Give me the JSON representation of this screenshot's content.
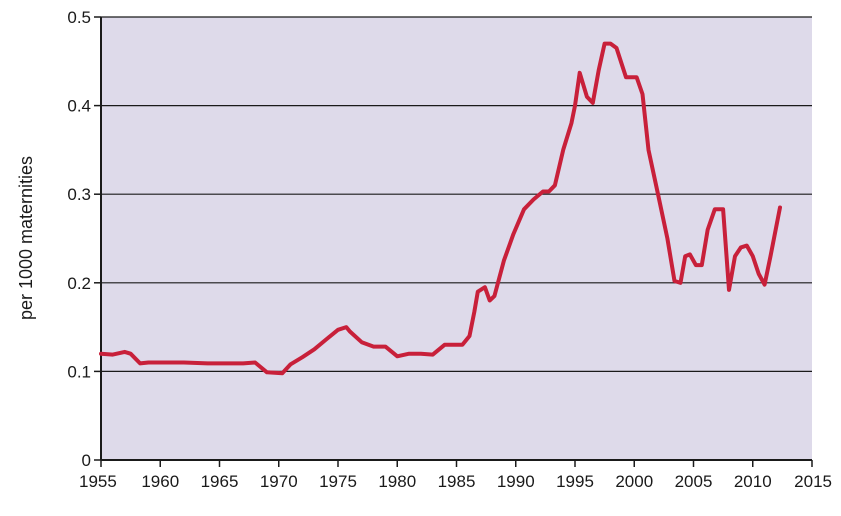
{
  "chart_data": {
    "type": "line",
    "title": "",
    "xlabel": "",
    "ylabel": "per 1000 maternities",
    "xlim": [
      1955,
      2015
    ],
    "ylim": [
      0,
      0.5
    ],
    "x_ticks": [
      1955,
      1960,
      1965,
      1970,
      1975,
      1980,
      1985,
      1990,
      1995,
      2000,
      2005,
      2010,
      2015
    ],
    "y_ticks": [
      {
        "value": 0,
        "label": "0"
      },
      {
        "value": 0.1,
        "label": "0.1"
      },
      {
        "value": 0.2,
        "label": "0.2"
      },
      {
        "value": 0.3,
        "label": "0.3"
      },
      {
        "value": 0.4,
        "label": "0.4"
      },
      {
        "value": 0.5,
        "label": "0.5"
      }
    ],
    "grid": "horizontal",
    "colors": {
      "plot_background": "#dedaea",
      "line": "#c8203a",
      "grid": "#1a1a1a",
      "axis": "#1a1a1a"
    },
    "series": [
      {
        "x": [
          1955,
          1956,
          1957,
          1957.5,
          1958.3,
          1959,
          1960,
          1962,
          1964,
          1966,
          1967,
          1968,
          1969,
          1970.3,
          1971,
          1972,
          1973,
          1974,
          1975,
          1975.7,
          1976,
          1977,
          1978,
          1979,
          1980,
          1981,
          1982,
          1983,
          1984,
          1985,
          1985.5,
          1986.1,
          1986.5,
          1986.8,
          1987.4,
          1987.8,
          1988.2,
          1989,
          1989.8,
          1990.7,
          1991.5,
          1992.3,
          1992.8,
          1993.3,
          1994,
          1994.7,
          1995,
          1995.4,
          1996,
          1996.5,
          1997,
          1997.5,
          1998,
          1998.5,
          1999.3,
          2000.2,
          2000.7,
          2001.2,
          2002,
          2002.8,
          2003.4,
          2003.9,
          2004.3,
          2004.7,
          2005.2,
          2005.7,
          2006.2,
          2006.8,
          2007.5,
          2008,
          2008.5,
          2009,
          2009.5,
          2010,
          2010.5,
          2011,
          2011.5,
          2012.3
        ],
        "values": [
          0.12,
          0.119,
          0.122,
          0.12,
          0.109,
          0.11,
          0.11,
          0.11,
          0.109,
          0.109,
          0.109,
          0.11,
          0.099,
          0.098,
          0.108,
          0.116,
          0.125,
          0.136,
          0.147,
          0.15,
          0.145,
          0.133,
          0.128,
          0.128,
          0.117,
          0.12,
          0.12,
          0.119,
          0.13,
          0.13,
          0.13,
          0.14,
          0.167,
          0.19,
          0.195,
          0.18,
          0.185,
          0.225,
          0.255,
          0.283,
          0.294,
          0.303,
          0.303,
          0.31,
          0.35,
          0.38,
          0.4,
          0.437,
          0.41,
          0.403,
          0.44,
          0.47,
          0.47,
          0.465,
          0.432,
          0.432,
          0.413,
          0.35,
          0.3,
          0.25,
          0.202,
          0.2,
          0.23,
          0.232,
          0.22,
          0.22,
          0.26,
          0.283,
          0.283,
          0.192,
          0.23,
          0.24,
          0.242,
          0.23,
          0.21,
          0.198,
          0.23,
          0.285
        ]
      }
    ]
  }
}
